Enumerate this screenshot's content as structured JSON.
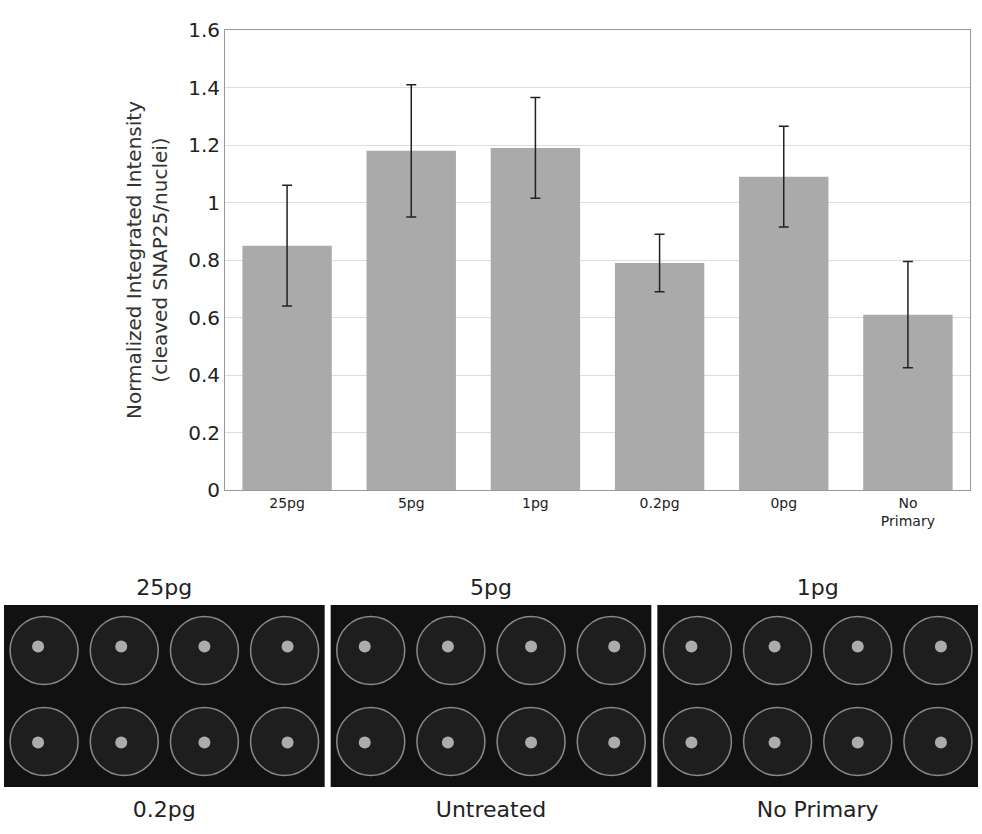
{
  "chart_data": {
    "type": "bar",
    "y_label": [
      "Normalized Integrated Intensity",
      "(cleaved SNAP25/nuclei)"
    ],
    "categories": [
      "25pg",
      "5pg",
      "1pg",
      "0.2pg",
      "0pg",
      "No Primary"
    ],
    "values": [
      0.85,
      1.18,
      1.19,
      0.79,
      1.09,
      0.61
    ],
    "errors": [
      0.21,
      0.23,
      0.175,
      0.1,
      0.175,
      0.185
    ],
    "color": "#aaaaaa",
    "ylim": [
      0,
      1.6
    ],
    "yticks": [
      0,
      0.2,
      0.4,
      0.6,
      0.8,
      1,
      1.2,
      1.4,
      1.6
    ],
    "grid": true
  },
  "image_panels": [
    {
      "top": "25pg",
      "bottom": "0.2pg"
    },
    {
      "top": "5pg",
      "bottom": "Untreated"
    },
    {
      "top": "1pg",
      "bottom": "No Primary"
    }
  ]
}
